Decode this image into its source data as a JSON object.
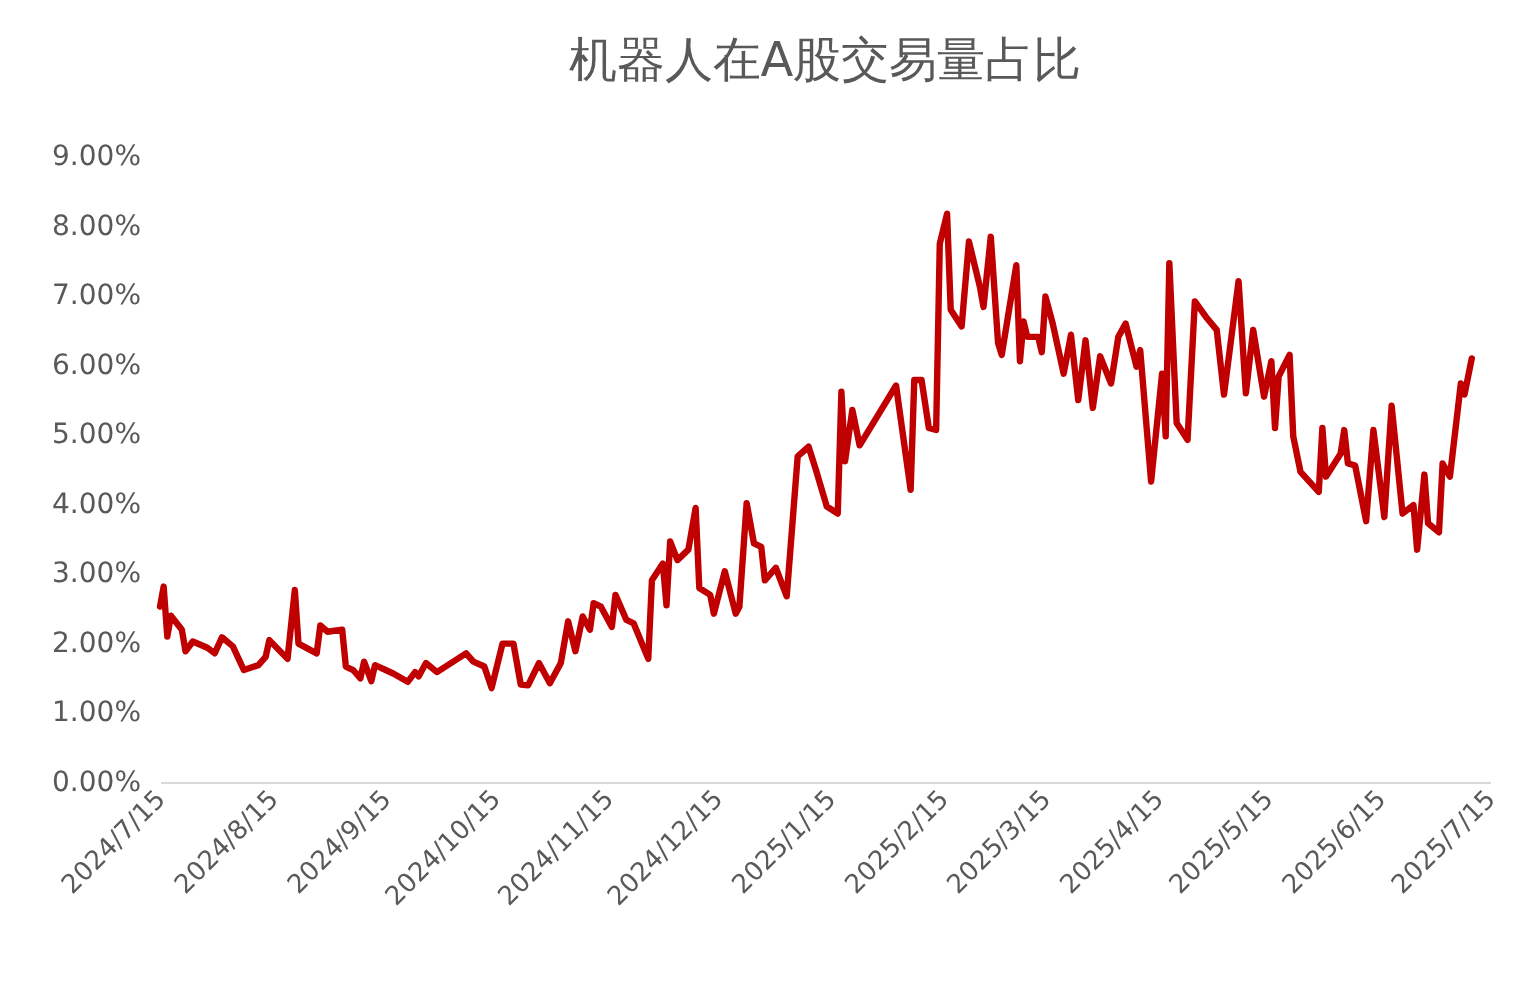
{
  "chart_data": {
    "type": "line",
    "title": "机器人在A股交易量占比",
    "x": [
      "2024-07-15",
      "2024-07-16",
      "2024-07-17",
      "2024-07-18",
      "2024-07-21",
      "2024-07-22",
      "2024-07-24",
      "2024-07-28",
      "2024-07-30",
      "2024-08-01",
      "2024-08-04",
      "2024-08-07",
      "2024-08-11",
      "2024-08-13",
      "2024-08-14",
      "2024-08-19",
      "2024-08-21",
      "2024-08-22",
      "2024-08-27",
      "2024-08-28",
      "2024-08-30",
      "2024-09-03",
      "2024-09-04",
      "2024-09-06",
      "2024-09-08",
      "2024-09-09",
      "2024-09-11",
      "2024-09-12",
      "2024-09-17",
      "2024-09-21",
      "2024-09-23",
      "2024-09-24",
      "2024-09-26",
      "2024-09-29",
      "2024-10-07",
      "2024-10-09",
      "2024-10-12",
      "2024-10-14",
      "2024-10-17",
      "2024-10-20",
      "2024-10-22",
      "2024-10-24",
      "2024-10-27",
      "2024-10-30",
      "2024-11-02",
      "2024-11-04",
      "2024-11-06",
      "2024-11-08",
      "2024-11-10",
      "2024-11-11",
      "2024-11-13",
      "2024-11-16",
      "2024-11-17",
      "2024-11-20",
      "2024-11-22",
      "2024-11-26",
      "2024-11-27",
      "2024-11-30",
      "2024-12-01",
      "2024-12-02",
      "2024-12-04",
      "2024-12-07",
      "2024-12-09",
      "2024-12-10",
      "2024-12-13",
      "2024-12-14",
      "2024-12-17",
      "2024-12-20",
      "2024-12-21",
      "2024-12-23",
      "2024-12-25",
      "2024-12-27",
      "2024-12-28",
      "2024-12-31",
      "2025-01-03",
      "2025-01-06",
      "2025-01-09",
      "2025-01-11",
      "2025-01-14",
      "2025-01-17",
      "2025-01-18",
      "2025-01-19",
      "2025-01-21",
      "2025-01-23",
      "2025-02-02",
      "2025-02-06",
      "2025-02-07",
      "2025-02-09",
      "2025-02-11",
      "2025-02-13",
      "2025-02-14",
      "2025-02-16",
      "2025-02-17",
      "2025-02-20",
      "2025-02-22",
      "2025-02-25",
      "2025-02-26",
      "2025-02-28",
      "2025-03-02",
      "2025-03-03",
      "2025-03-07",
      "2025-03-08",
      "2025-03-09",
      "2025-03-10",
      "2025-03-13",
      "2025-03-14",
      "2025-03-15",
      "2025-03-17",
      "2025-03-20",
      "2025-03-22",
      "2025-03-24",
      "2025-03-26",
      "2025-03-28",
      "2025-03-30",
      "2025-04-02",
      "2025-04-04",
      "2025-04-06",
      "2025-04-09",
      "2025-04-10",
      "2025-04-13",
      "2025-04-16",
      "2025-04-17",
      "2025-04-18",
      "2025-04-20",
      "2025-04-23",
      "2025-04-25",
      "2025-04-28",
      "2025-05-01",
      "2025-05-03",
      "2025-05-07",
      "2025-05-09",
      "2025-05-11",
      "2025-05-14",
      "2025-05-16",
      "2025-05-17",
      "2025-05-18",
      "2025-05-21",
      "2025-05-22",
      "2025-05-24",
      "2025-05-29",
      "2025-05-30",
      "2025-05-31",
      "2025-06-04",
      "2025-06-05",
      "2025-06-06",
      "2025-06-08",
      "2025-06-11",
      "2025-06-13",
      "2025-06-16",
      "2025-06-18",
      "2025-06-21",
      "2025-06-24",
      "2025-06-25",
      "2025-06-27",
      "2025-06-28",
      "2025-07-01",
      "2025-07-02",
      "2025-07-04",
      "2025-07-07",
      "2025-07-08",
      "2025-07-10"
    ],
    "values": [
      2.52,
      2.81,
      2.09,
      2.39,
      2.19,
      1.88,
      2.02,
      1.93,
      1.85,
      2.08,
      1.95,
      1.61,
      1.68,
      1.8,
      2.04,
      1.77,
      2.76,
      1.99,
      1.85,
      2.25,
      2.16,
      2.19,
      1.66,
      1.61,
      1.49,
      1.73,
      1.45,
      1.68,
      1.56,
      1.44,
      1.58,
      1.52,
      1.71,
      1.58,
      1.85,
      1.73,
      1.66,
      1.35,
      1.99,
      1.99,
      1.4,
      1.39,
      1.71,
      1.42,
      1.71,
      2.31,
      1.88,
      2.38,
      2.19,
      2.57,
      2.52,
      2.23,
      2.69,
      2.33,
      2.28,
      1.77,
      2.9,
      3.14,
      2.54,
      3.46,
      3.19,
      3.34,
      3.94,
      2.79,
      2.69,
      2.42,
      3.03,
      2.42,
      2.52,
      4.01,
      3.43,
      3.38,
      2.9,
      3.08,
      2.67,
      4.68,
      4.82,
      4.49,
      3.96,
      3.86,
      5.61,
      4.61,
      5.35,
      4.84,
      5.7,
      4.2,
      5.78,
      5.78,
      5.09,
      5.06,
      7.74,
      8.17,
      6.79,
      6.55,
      7.77,
      7.12,
      6.83,
      7.84,
      6.31,
      6.14,
      7.43,
      6.05,
      6.62,
      6.4,
      6.4,
      6.18,
      6.98,
      6.59,
      5.87,
      6.43,
      5.49,
      6.35,
      5.38,
      6.12,
      5.73,
      6.4,
      6.59,
      5.97,
      6.21,
      4.32,
      5.87,
      4.97,
      7.46,
      5.16,
      4.92,
      6.91,
      6.69,
      6.5,
      5.57,
      7.2,
      5.59,
      6.5,
      5.54,
      6.05,
      5.09,
      5.83,
      6.14,
      4.97,
      4.46,
      4.17,
      5.09,
      4.39,
      4.72,
      5.06,
      4.58,
      4.55,
      3.75,
      5.06,
      3.81,
      5.41,
      3.86,
      3.98,
      3.34,
      4.42,
      3.72,
      3.59,
      4.58,
      4.39,
      5.73,
      5.57,
      6.09
    ],
    "color": "#c00000",
    "line_style": "solid",
    "grid": false,
    "xlim": [
      "2024-07-15",
      "2025-07-15"
    ],
    "xticks": [
      {
        "value": "2024-07-15",
        "label": "2024/7/15"
      },
      {
        "value": "2024-08-15",
        "label": "2024/8/15"
      },
      {
        "value": "2024-09-15",
        "label": "2024/9/15"
      },
      {
        "value": "2024-10-15",
        "label": "2024/10/15"
      },
      {
        "value": "2024-11-15",
        "label": "2024/11/15"
      },
      {
        "value": "2024-12-15",
        "label": "2024/12/15"
      },
      {
        "value": "2025-01-15",
        "label": "2025/1/15"
      },
      {
        "value": "2025-02-15",
        "label": "2025/2/15"
      },
      {
        "value": "2025-03-15",
        "label": "2025/3/15"
      },
      {
        "value": "2025-04-15",
        "label": "2025/4/15"
      },
      {
        "value": "2025-05-15",
        "label": "2025/5/15"
      },
      {
        "value": "2025-06-15",
        "label": "2025/6/15"
      },
      {
        "value": "2025-07-15",
        "label": "2025/7/15"
      }
    ],
    "ylim": [
      0,
      9
    ],
    "yticks": [
      {
        "value": 0,
        "label": "0.00%"
      },
      {
        "value": 1,
        "label": "1.00%"
      },
      {
        "value": 2,
        "label": "2.00%"
      },
      {
        "value": 3,
        "label": "3.00%"
      },
      {
        "value": 4,
        "label": "4.00%"
      },
      {
        "value": 5,
        "label": "5.00%"
      },
      {
        "value": 6,
        "label": "6.00%"
      },
      {
        "value": 7,
        "label": "7.00%"
      },
      {
        "value": 8,
        "label": "8.00%"
      },
      {
        "value": 9,
        "label": "9.00%"
      }
    ]
  }
}
